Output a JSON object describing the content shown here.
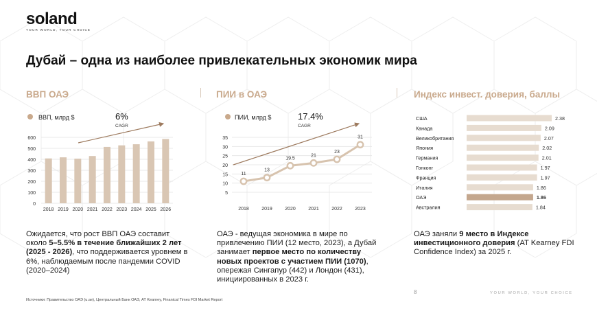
{
  "brand": {
    "logo": "soland",
    "tagline": "YOUR WORLD, YOUR CHOICE"
  },
  "page": {
    "title": "Дубай – одна из наиболее привлекательных экономик мира",
    "number": "8",
    "footer_tagline": "YOUR WORLD, YOUR CHOICE",
    "sources": "Источники: Правительство ОАЭ (u.ae), Центральный Банк ОАЭ, AT Kearney, Finanical Times FDI Market Report"
  },
  "colors": {
    "accent": "#c9a98c",
    "bar": "#d9c6b3",
    "bar_highlight": "#c4a78e",
    "arrow": "#9d7a5e",
    "line": "#d7c3ae"
  },
  "gdp": {
    "title": "ВВП ОАЭ",
    "text": {
      "p1": "Ожидается, что рост ВВП ОАЭ составит около ",
      "b1": "5–5.5% в течение ближайших 2 лет (2025 - 2026)",
      "p2": ", что поддерживается уровнем в 6%, наблюдаемым после пандемии COVID (2020–2024)"
    }
  },
  "fdi": {
    "title": "ПИИ в ОАЭ",
    "text": {
      "p1": "ОАЭ - ведущая экономика в мире по привлечению ПИИ (12 место, 2023), а Дубай занимает ",
      "b1": "первое место по количеству новых проектов с участием ПИИ (1070)",
      "p2": ", опережая Сингапур (442) и Лондон (431), инициированных в 2023 г."
    }
  },
  "index": {
    "title": "Индекс инвест. доверия, баллы",
    "text": {
      "p1": "ОАЭ заняли ",
      "b1": "9 место в Индексе инвестиционного доверия",
      "p2": " (AT Kearney FDI Confidence Index) за 2025 г."
    }
  },
  "chart_data": [
    {
      "type": "bar",
      "legend": "ВВП, млрд $",
      "cagr": "6%",
      "cagr_label": "CAGR",
      "categories": [
        "2018",
        "2019",
        "2020",
        "2021",
        "2022",
        "2023",
        "2024",
        "2025",
        "2026"
      ],
      "values": [
        408,
        418,
        406,
        430,
        513,
        527,
        537,
        563,
        585
      ],
      "yticks": [
        0,
        100,
        200,
        300,
        400,
        500,
        600
      ],
      "ylim": [
        0,
        600
      ],
      "grid": true
    },
    {
      "type": "line",
      "legend": "ПИИ, млрд $",
      "cagr": "17.4%",
      "cagr_label": "CAGR",
      "categories": [
        "2018",
        "2019",
        "2020",
        "2021",
        "2022",
        "2023"
      ],
      "values": [
        11,
        13,
        19.5,
        21,
        23,
        31
      ],
      "labels": [
        "11",
        "13",
        "19.5",
        "21",
        "23",
        "31"
      ],
      "yticks": [
        5,
        10,
        15,
        20,
        25,
        30,
        35
      ],
      "ylim": [
        5,
        35
      ],
      "grid": true
    },
    {
      "type": "bar",
      "orientation": "horizontal",
      "categories": [
        "США",
        "Канада",
        "Великобритания",
        "Япония",
        "Германия",
        "Гонконг",
        "Франция",
        "Италия",
        "ОАЭ",
        "Австралия"
      ],
      "values": [
        2.38,
        2.09,
        2.07,
        2.02,
        2.01,
        1.97,
        1.97,
        1.86,
        1.86,
        1.84
      ],
      "labels": [
        "2.38",
        "2.09",
        "2.07",
        "2.02",
        "2.01",
        "1.97",
        "1.97",
        "1.86",
        "1.86",
        "1.84"
      ],
      "highlight": "ОАЭ",
      "xlim": [
        0,
        2.38
      ]
    }
  ]
}
